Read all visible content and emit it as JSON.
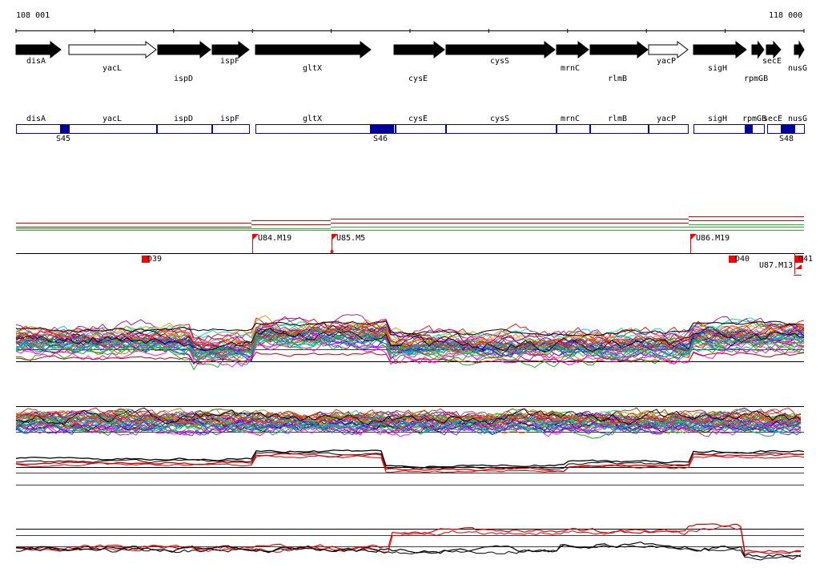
{
  "coords": {
    "start": "108 001",
    "end": "118 000"
  },
  "colors": {
    "gene_fill": "#000000",
    "gene_open": "#ffffff",
    "region_border": "#0000cc",
    "region_site": "#000099",
    "marker": "#ff0000",
    "red_line": "#e00000",
    "green_line": "#22bb22"
  },
  "genes": [
    {
      "name": "disA",
      "open": false
    },
    {
      "name": "yacL",
      "open": true
    },
    {
      "name": "ispD",
      "open": false
    },
    {
      "name": "ispF",
      "open": false
    },
    {
      "name": "gltX",
      "open": false
    },
    {
      "name": "cysE",
      "open": false
    },
    {
      "name": "cysS",
      "open": false
    },
    {
      "name": "mrnC",
      "open": false
    },
    {
      "name": "rlmB",
      "open": false
    },
    {
      "name": "yacP",
      "open": true
    },
    {
      "name": "sigH",
      "open": false
    },
    {
      "name": "rpmGB",
      "open": false
    },
    {
      "name": "secE",
      "open": false
    },
    {
      "name": "nusG",
      "open": false
    }
  ],
  "region_labels": [
    "disA",
    "yacL",
    "ispD",
    "ispF",
    "gltX",
    "cysE",
    "cysS",
    "mrnC",
    "rlmB",
    "yacP",
    "sigH",
    "rpmGB",
    "secE",
    "nusG"
  ],
  "sites": [
    "S45",
    "S46",
    "S48"
  ],
  "upstream_markers": [
    "U84.M19",
    "U85.M5",
    "U86.M19",
    "U87.M13"
  ],
  "downstream_markers": [
    "D39",
    "D40",
    "D41"
  ]
}
